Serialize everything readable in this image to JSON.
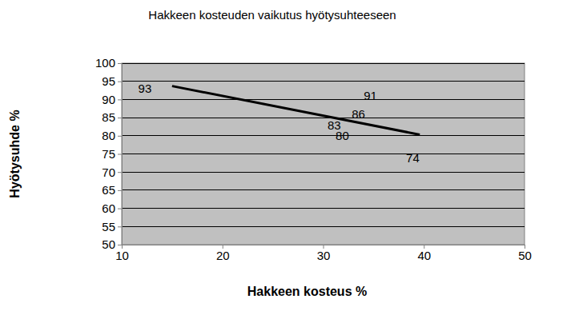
{
  "chart_data": {
    "type": "scatter",
    "title": "Hakkeen kosteuden vaikutus hyötysuhteeseen",
    "x_label": "Hakkeen kosteus %",
    "y_label": "Hyötysuhde %",
    "xlim": [
      10,
      50
    ],
    "xticks": [
      10,
      20,
      30,
      40,
      50
    ],
    "ylim": [
      50,
      100
    ],
    "yticks": [
      50,
      55,
      60,
      65,
      70,
      75,
      80,
      85,
      90,
      95,
      100
    ],
    "grid": true,
    "data_labels": true,
    "series": [
      {
        "type": "scatter",
        "marker": "none",
        "color": "#000000",
        "x": [
          12.3,
          34.7,
          33.5,
          31.1,
          31.9,
          38.9
        ],
        "values": [
          93,
          91,
          86,
          83,
          80,
          74
        ]
      },
      {
        "type": "line",
        "line_style": "solid",
        "color": "#000000",
        "x": [
          15,
          39.6
        ],
        "values": [
          93.7,
          80.3
        ]
      }
    ]
  }
}
